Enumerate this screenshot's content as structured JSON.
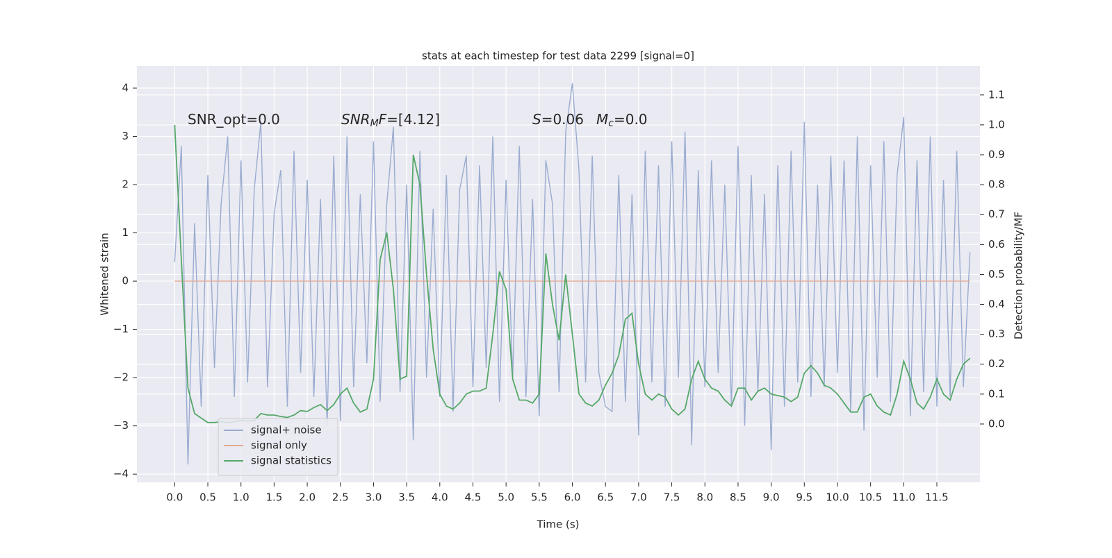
{
  "chart_data": {
    "type": "line",
    "title": "stats at each timestep for test data 2299 [signal=0]",
    "xlabel": "Time (s)",
    "ylabel": "Whitened strain",
    "y2label": "Detection probability/MF",
    "annotations": [
      [
        "SNR_opt=0.0"
      ],
      [
        "SNR",
        "M",
        "F",
        "=[4.12]"
      ],
      [
        "S",
        "=0.06"
      ],
      [
        "M",
        "c",
        "=0.0"
      ]
    ],
    "x": [
      0,
      0.1,
      0.2,
      0.3,
      0.4,
      0.5,
      0.6,
      0.7,
      0.8,
      0.9,
      1,
      1.1,
      1.2,
      1.3,
      1.4,
      1.5,
      1.6,
      1.7,
      1.8,
      1.9,
      2,
      2.1,
      2.2,
      2.3,
      2.4,
      2.5,
      2.6,
      2.7,
      2.8,
      2.9,
      3,
      3.1,
      3.2,
      3.3,
      3.4,
      3.5,
      3.6,
      3.7,
      3.8,
      3.9,
      4,
      4.1,
      4.2,
      4.3,
      4.4,
      4.5,
      4.6,
      4.7,
      4.8,
      4.9,
      5,
      5.1,
      5.2,
      5.3,
      5.4,
      5.5,
      5.6,
      5.7,
      5.8,
      5.9,
      6,
      6.1,
      6.2,
      6.3,
      6.4,
      6.5,
      6.6,
      6.7,
      6.8,
      6.9,
      7,
      7.1,
      7.2,
      7.3,
      7.4,
      7.5,
      7.6,
      7.7,
      7.8,
      7.9,
      8,
      8.1,
      8.2,
      8.3,
      8.4,
      8.5,
      8.6,
      8.7,
      8.8,
      8.9,
      9,
      9.1,
      9.2,
      9.3,
      9.4,
      9.5,
      9.6,
      9.7,
      9.8,
      9.9,
      10,
      10.1,
      10.2,
      10.3,
      10.4,
      10.5,
      10.6,
      10.7,
      10.8,
      10.9,
      11,
      11.1,
      11.2,
      11.3,
      11.4,
      11.5,
      11.6,
      11.7,
      11.8,
      11.9,
      12
    ],
    "series": [
      {
        "name": "signal+ noise",
        "color": "#9aacd0",
        "values": [
          0.4,
          2.8,
          -3.8,
          1.2,
          -2.6,
          2.2,
          -1.8,
          1.6,
          3.0,
          -2.4,
          2.5,
          -2.1,
          1.9,
          3.3,
          -2.2,
          1.4,
          2.3,
          -2.6,
          2.7,
          -1.9,
          2.1,
          -2.4,
          1.7,
          -3.0,
          2.6,
          -2.9,
          3.0,
          -2.2,
          1.8,
          -1.7,
          2.9,
          -2.5,
          1.6,
          3.2,
          -2.3,
          2.0,
          -3.3,
          2.7,
          -2.0,
          1.5,
          -2.4,
          2.2,
          -2.7,
          1.9,
          2.6,
          -2.2,
          2.4,
          -1.8,
          3.0,
          -2.5,
          2.1,
          -2.0,
          2.8,
          -2.4,
          1.7,
          -2.8,
          2.5,
          1.6,
          -2.3,
          3.1,
          4.1,
          2.3,
          -2.1,
          2.6,
          -1.9,
          -2.6,
          -2.7,
          2.2,
          -2.5,
          1.8,
          -3.2,
          2.7,
          -2.1,
          2.4,
          -2.6,
          2.9,
          -2.0,
          3.1,
          -3.4,
          2.3,
          -2.2,
          2.5,
          -1.9,
          2.0,
          -2.6,
          2.8,
          -3.0,
          2.2,
          -2.3,
          1.8,
          -3.5,
          2.4,
          -2.6,
          2.7,
          -2.1,
          3.3,
          -2.4,
          2.0,
          -2.2,
          2.6,
          -1.9,
          2.5,
          -2.7,
          3.0,
          -3.1,
          2.4,
          -2.0,
          2.9,
          -2.5,
          2.2,
          3.4,
          -2.8,
          2.5,
          -2.3,
          3.0,
          -2.6,
          2.1,
          -2.4,
          2.7,
          -2.2,
          0.6
        ]
      },
      {
        "name": "signal only",
        "color": "#e3ab94",
        "values": [
          0,
          0,
          0,
          0,
          0,
          0,
          0,
          0,
          0,
          0,
          0,
          0,
          0,
          0,
          0,
          0,
          0,
          0,
          0,
          0,
          0,
          0,
          0,
          0,
          0,
          0,
          0,
          0,
          0,
          0,
          0,
          0,
          0,
          0,
          0,
          0,
          0,
          0,
          0,
          0,
          0,
          0,
          0,
          0,
          0,
          0,
          0,
          0,
          0,
          0,
          0,
          0,
          0,
          0,
          0,
          0,
          0,
          0,
          0,
          0,
          0,
          0,
          0,
          0,
          0,
          0,
          0,
          0,
          0,
          0,
          0,
          0,
          0,
          0,
          0,
          0,
          0,
          0,
          0,
          0,
          0,
          0,
          0,
          0,
          0,
          0,
          0,
          0,
          0,
          0,
          0,
          0,
          0,
          0,
          0,
          0,
          0,
          0,
          0,
          0,
          0,
          0,
          0,
          0,
          0,
          0,
          0,
          0,
          0,
          0,
          0,
          0,
          0,
          0,
          0,
          0,
          0,
          0,
          0,
          0,
          0
        ]
      },
      {
        "name": "signal statistics",
        "color": "#55a868",
        "axis": "y2",
        "values": [
          1.0,
          0.55,
          0.12,
          0.035,
          0.02,
          0.005,
          0.005,
          0.008,
          0.005,
          0.008,
          0.012,
          0.01,
          0.012,
          0.035,
          0.03,
          0.03,
          0.025,
          0.022,
          0.03,
          0.045,
          0.042,
          0.055,
          0.065,
          0.045,
          0.065,
          0.1,
          0.12,
          0.07,
          0.04,
          0.05,
          0.15,
          0.55,
          0.64,
          0.45,
          0.15,
          0.16,
          0.9,
          0.8,
          0.5,
          0.25,
          0.1,
          0.06,
          0.05,
          0.07,
          0.1,
          0.11,
          0.11,
          0.12,
          0.3,
          0.51,
          0.45,
          0.15,
          0.08,
          0.08,
          0.07,
          0.1,
          0.57,
          0.4,
          0.28,
          0.5,
          0.3,
          0.1,
          0.07,
          0.06,
          0.08,
          0.13,
          0.17,
          0.23,
          0.35,
          0.37,
          0.2,
          0.1,
          0.08,
          0.1,
          0.09,
          0.05,
          0.03,
          0.05,
          0.15,
          0.21,
          0.15,
          0.12,
          0.11,
          0.08,
          0.06,
          0.12,
          0.12,
          0.08,
          0.11,
          0.12,
          0.1,
          0.095,
          0.09,
          0.075,
          0.09,
          0.17,
          0.195,
          0.17,
          0.13,
          0.12,
          0.1,
          0.07,
          0.04,
          0.04,
          0.09,
          0.1,
          0.06,
          0.04,
          0.03,
          0.1,
          0.21,
          0.15,
          0.07,
          0.05,
          0.09,
          0.15,
          0.1,
          0.08,
          0.15,
          0.2,
          0.22
        ]
      }
    ],
    "xlim": [
      -0.57,
      12.15
    ],
    "xticks": [
      {
        "value": 0,
        "label": "0.0"
      },
      0.5,
      {
        "value": 1,
        "label": "1.0"
      },
      1.5,
      {
        "value": 2,
        "label": "2.0"
      },
      2.5,
      {
        "value": 3,
        "label": "3.0"
      },
      3.5,
      {
        "value": 4,
        "label": "4.0"
      },
      4.5,
      {
        "value": 5,
        "label": "5.0"
      },
      5.5,
      {
        "value": 6,
        "label": "6.0"
      },
      6.5,
      {
        "value": 7,
        "label": "7.0"
      },
      7.5,
      {
        "value": 8,
        "label": "8.0"
      },
      8.5,
      {
        "value": 9,
        "label": "9.0"
      },
      9.5,
      {
        "value": 10,
        "label": "10.0"
      },
      10.5,
      {
        "value": 11,
        "label": "11.0"
      },
      11.5
    ],
    "ylim": [
      -4.17,
      4.46
    ],
    "yticks": [
      {
        "value": -4,
        "label": "−4"
      },
      {
        "value": -3,
        "label": "−3"
      },
      {
        "value": -2,
        "label": "−2"
      },
      {
        "value": -1,
        "label": "−1"
      },
      0,
      1,
      2,
      3,
      4
    ],
    "y2lim": [
      -0.195,
      1.197
    ],
    "y2ticks": [
      {
        "value": 0,
        "label": "0.0"
      },
      0.1,
      0.2,
      0.3,
      0.4,
      0.5,
      0.6,
      0.7,
      0.8,
      0.9,
      {
        "value": 1,
        "label": "1.0"
      },
      1.1
    ],
    "grid": true,
    "legend": "lower left"
  }
}
